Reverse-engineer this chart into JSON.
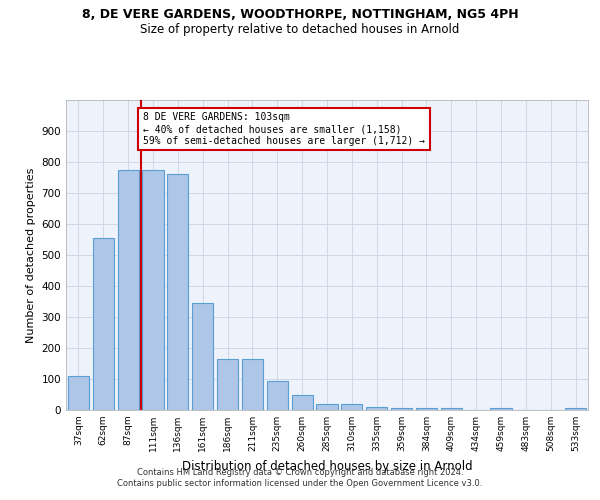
{
  "title1": "8, DE VERE GARDENS, WOODTHORPE, NOTTINGHAM, NG5 4PH",
  "title2": "Size of property relative to detached houses in Arnold",
  "xlabel": "Distribution of detached houses by size in Arnold",
  "ylabel": "Number of detached properties",
  "categories": [
    "37sqm",
    "62sqm",
    "87sqm",
    "111sqm",
    "136sqm",
    "161sqm",
    "186sqm",
    "211sqm",
    "235sqm",
    "260sqm",
    "285sqm",
    "310sqm",
    "335sqm",
    "359sqm",
    "384sqm",
    "409sqm",
    "434sqm",
    "459sqm",
    "483sqm",
    "508sqm",
    "533sqm"
  ],
  "values": [
    110,
    555,
    775,
    775,
    760,
    345,
    165,
    165,
    95,
    50,
    18,
    18,
    10,
    5,
    5,
    5,
    0,
    5,
    0,
    0,
    5
  ],
  "bar_color": "#aec6e8",
  "bar_edge_color": "#5a9fd4",
  "vline_color": "#cc0000",
  "vline_pos": 2.5,
  "annotation_text": "8 DE VERE GARDENS: 103sqm\n← 40% of detached houses are smaller (1,158)\n59% of semi-detached houses are larger (1,712) →",
  "annotation_box_color": "#ffffff",
  "annotation_border_color": "#cc0000",
  "ylim": [
    0,
    1000
  ],
  "yticks": [
    0,
    100,
    200,
    300,
    400,
    500,
    600,
    700,
    800,
    900,
    1000
  ],
  "grid_color": "#d0d8e8",
  "background_color": "#eef2fb",
  "footer1": "Contains HM Land Registry data © Crown copyright and database right 2024.",
  "footer2": "Contains public sector information licensed under the Open Government Licence v3.0."
}
